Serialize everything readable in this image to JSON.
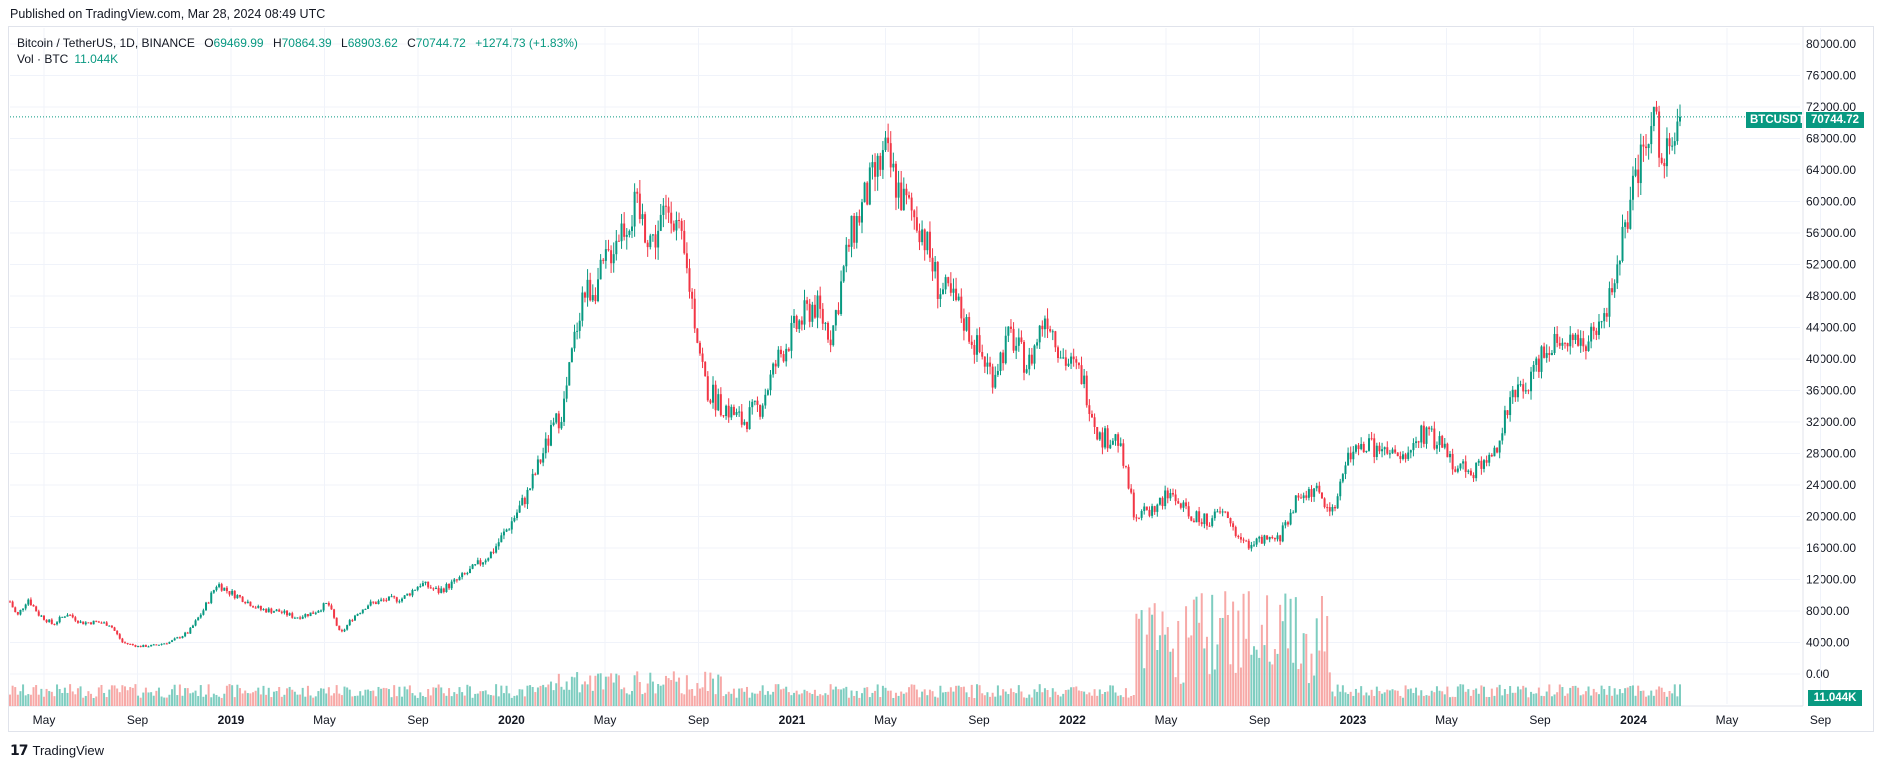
{
  "published": "Published on TradingView.com, Mar 28, 2024 08:49 UTC",
  "legend": {
    "symbol": "Bitcoin / TetherUS, 1D, BINANCE",
    "open_label": "O",
    "open": "69469.99",
    "high_label": "H",
    "high": "70864.39",
    "low_label": "L",
    "low": "68903.62",
    "close_label": "C",
    "close": "70744.72",
    "change": "+1274.73 (+1.83%)",
    "vol_label": "Vol · BTC",
    "vol_value": "11.044K"
  },
  "price_tag": {
    "symbol": "BTCUSDT",
    "value": "70744.72"
  },
  "vol_tag": "11.044K",
  "footer": {
    "brand": "TradingView"
  },
  "colors": {
    "up": "#089981",
    "down": "#f23645",
    "up_vol": "#7ecdc0",
    "down_vol": "#f7a9a7",
    "grid": "#f0f3fa"
  },
  "chart_data": {
    "type": "candlestick",
    "title": "Bitcoin / TetherUS, 1D, BINANCE",
    "y_axis_ticks": [
      "80000.00",
      "76000.00",
      "72000.00",
      "68000.00",
      "64000.00",
      "60000.00",
      "56000.00",
      "52000.00",
      "48000.00",
      "44000.00",
      "40000.00",
      "36000.00",
      "32000.00",
      "28000.00",
      "24000.00",
      "20000.00",
      "16000.00",
      "12000.00",
      "8000.00",
      "4000.00",
      "0.00"
    ],
    "ylim": [
      0,
      80000
    ],
    "x_axis_ticks": [
      "May",
      "Sep",
      "2019",
      "May",
      "Sep",
      "2020",
      "May",
      "Sep",
      "2021",
      "May",
      "Sep",
      "2022",
      "May",
      "Sep",
      "2023",
      "May",
      "Sep",
      "2024",
      "May",
      "Sep"
    ],
    "last_close": 70744.72,
    "approx_path": [
      {
        "t": 0,
        "p": 9200
      },
      {
        "t": 0.4,
        "p": 7300
      },
      {
        "t": 1,
        "p": 9600
      },
      {
        "t": 1.6,
        "p": 7600
      },
      {
        "t": 2.4,
        "p": 6300
      },
      {
        "t": 3.2,
        "p": 7700
      },
      {
        "t": 4,
        "p": 6500
      },
      {
        "t": 4.8,
        "p": 6600
      },
      {
        "t": 5.6,
        "p": 6300
      },
      {
        "t": 6.3,
        "p": 4000
      },
      {
        "t": 7.2,
        "p": 3500
      },
      {
        "t": 8,
        "p": 3600
      },
      {
        "t": 9,
        "p": 4100
      },
      {
        "t": 10,
        "p": 5300
      },
      {
        "t": 10.8,
        "p": 8000
      },
      {
        "t": 11.6,
        "p": 11500
      },
      {
        "t": 12.2,
        "p": 10500
      },
      {
        "t": 13,
        "p": 9600
      },
      {
        "t": 14,
        "p": 8200
      },
      {
        "t": 15,
        "p": 8000
      },
      {
        "t": 16,
        "p": 7200
      },
      {
        "t": 17,
        "p": 7800
      },
      {
        "t": 17.8,
        "p": 9000
      },
      {
        "t": 18.5,
        "p": 5000
      },
      {
        "t": 19.2,
        "p": 7200
      },
      {
        "t": 20,
        "p": 8800
      },
      {
        "t": 21,
        "p": 9400
      },
      {
        "t": 22,
        "p": 9600
      },
      {
        "t": 23,
        "p": 11500
      },
      {
        "t": 24,
        "p": 10500
      },
      {
        "t": 25,
        "p": 11800
      },
      {
        "t": 26,
        "p": 13500
      },
      {
        "t": 27,
        "p": 15500
      },
      {
        "t": 28,
        "p": 19000
      },
      {
        "t": 29,
        "p": 23000
      },
      {
        "t": 30,
        "p": 29000
      },
      {
        "t": 31,
        "p": 34000
      },
      {
        "t": 32,
        "p": 48000
      },
      {
        "t": 33,
        "p": 50000
      },
      {
        "t": 34,
        "p": 56000
      },
      {
        "t": 35,
        "p": 59000
      },
      {
        "t": 36,
        "p": 55000
      },
      {
        "t": 37,
        "p": 60000
      },
      {
        "t": 38,
        "p": 50000
      },
      {
        "t": 39,
        "p": 36000
      },
      {
        "t": 40,
        "p": 34000
      },
      {
        "t": 41,
        "p": 32000
      },
      {
        "t": 42,
        "p": 34000
      },
      {
        "t": 43,
        "p": 40000
      },
      {
        "t": 44,
        "p": 44000
      },
      {
        "t": 45,
        "p": 47000
      },
      {
        "t": 46,
        "p": 43000
      },
      {
        "t": 47,
        "p": 55000
      },
      {
        "t": 48,
        "p": 61000
      },
      {
        "t": 49,
        "p": 66000
      },
      {
        "t": 50,
        "p": 60000
      },
      {
        "t": 51,
        "p": 57000
      },
      {
        "t": 52,
        "p": 49000
      },
      {
        "t": 53,
        "p": 47000
      },
      {
        "t": 54,
        "p": 42000
      },
      {
        "t": 55,
        "p": 38000
      },
      {
        "t": 56,
        "p": 43000
      },
      {
        "t": 57,
        "p": 39000
      },
      {
        "t": 58,
        "p": 46000
      },
      {
        "t": 59,
        "p": 40000
      },
      {
        "t": 60,
        "p": 38000
      },
      {
        "t": 61,
        "p": 30000
      },
      {
        "t": 62,
        "p": 30000
      },
      {
        "t": 63,
        "p": 20000
      },
      {
        "t": 64,
        "p": 21000
      },
      {
        "t": 65,
        "p": 23000
      },
      {
        "t": 66,
        "p": 20000
      },
      {
        "t": 67,
        "p": 19500
      },
      {
        "t": 68,
        "p": 20500
      },
      {
        "t": 69,
        "p": 16500
      },
      {
        "t": 70,
        "p": 16800
      },
      {
        "t": 71,
        "p": 17000
      },
      {
        "t": 72,
        "p": 22000
      },
      {
        "t": 73,
        "p": 23500
      },
      {
        "t": 74,
        "p": 20500
      },
      {
        "t": 75,
        "p": 28000
      },
      {
        "t": 76,
        "p": 29000
      },
      {
        "t": 77,
        "p": 28000
      },
      {
        "t": 78,
        "p": 27000
      },
      {
        "t": 79,
        "p": 30500
      },
      {
        "t": 80,
        "p": 29500
      },
      {
        "t": 81,
        "p": 26500
      },
      {
        "t": 82,
        "p": 26000
      },
      {
        "t": 83,
        "p": 27500
      },
      {
        "t": 84,
        "p": 34500
      },
      {
        "t": 85,
        "p": 37000
      },
      {
        "t": 86,
        "p": 42000
      },
      {
        "t": 87,
        "p": 43000
      },
      {
        "t": 88,
        "p": 42000
      },
      {
        "t": 89,
        "p": 43000
      },
      {
        "t": 90,
        "p": 52000
      },
      {
        "t": 91,
        "p": 62000
      },
      {
        "t": 92,
        "p": 70000
      },
      {
        "t": 93,
        "p": 65000
      },
      {
        "t": 93.5,
        "p": 70744.72
      }
    ]
  }
}
